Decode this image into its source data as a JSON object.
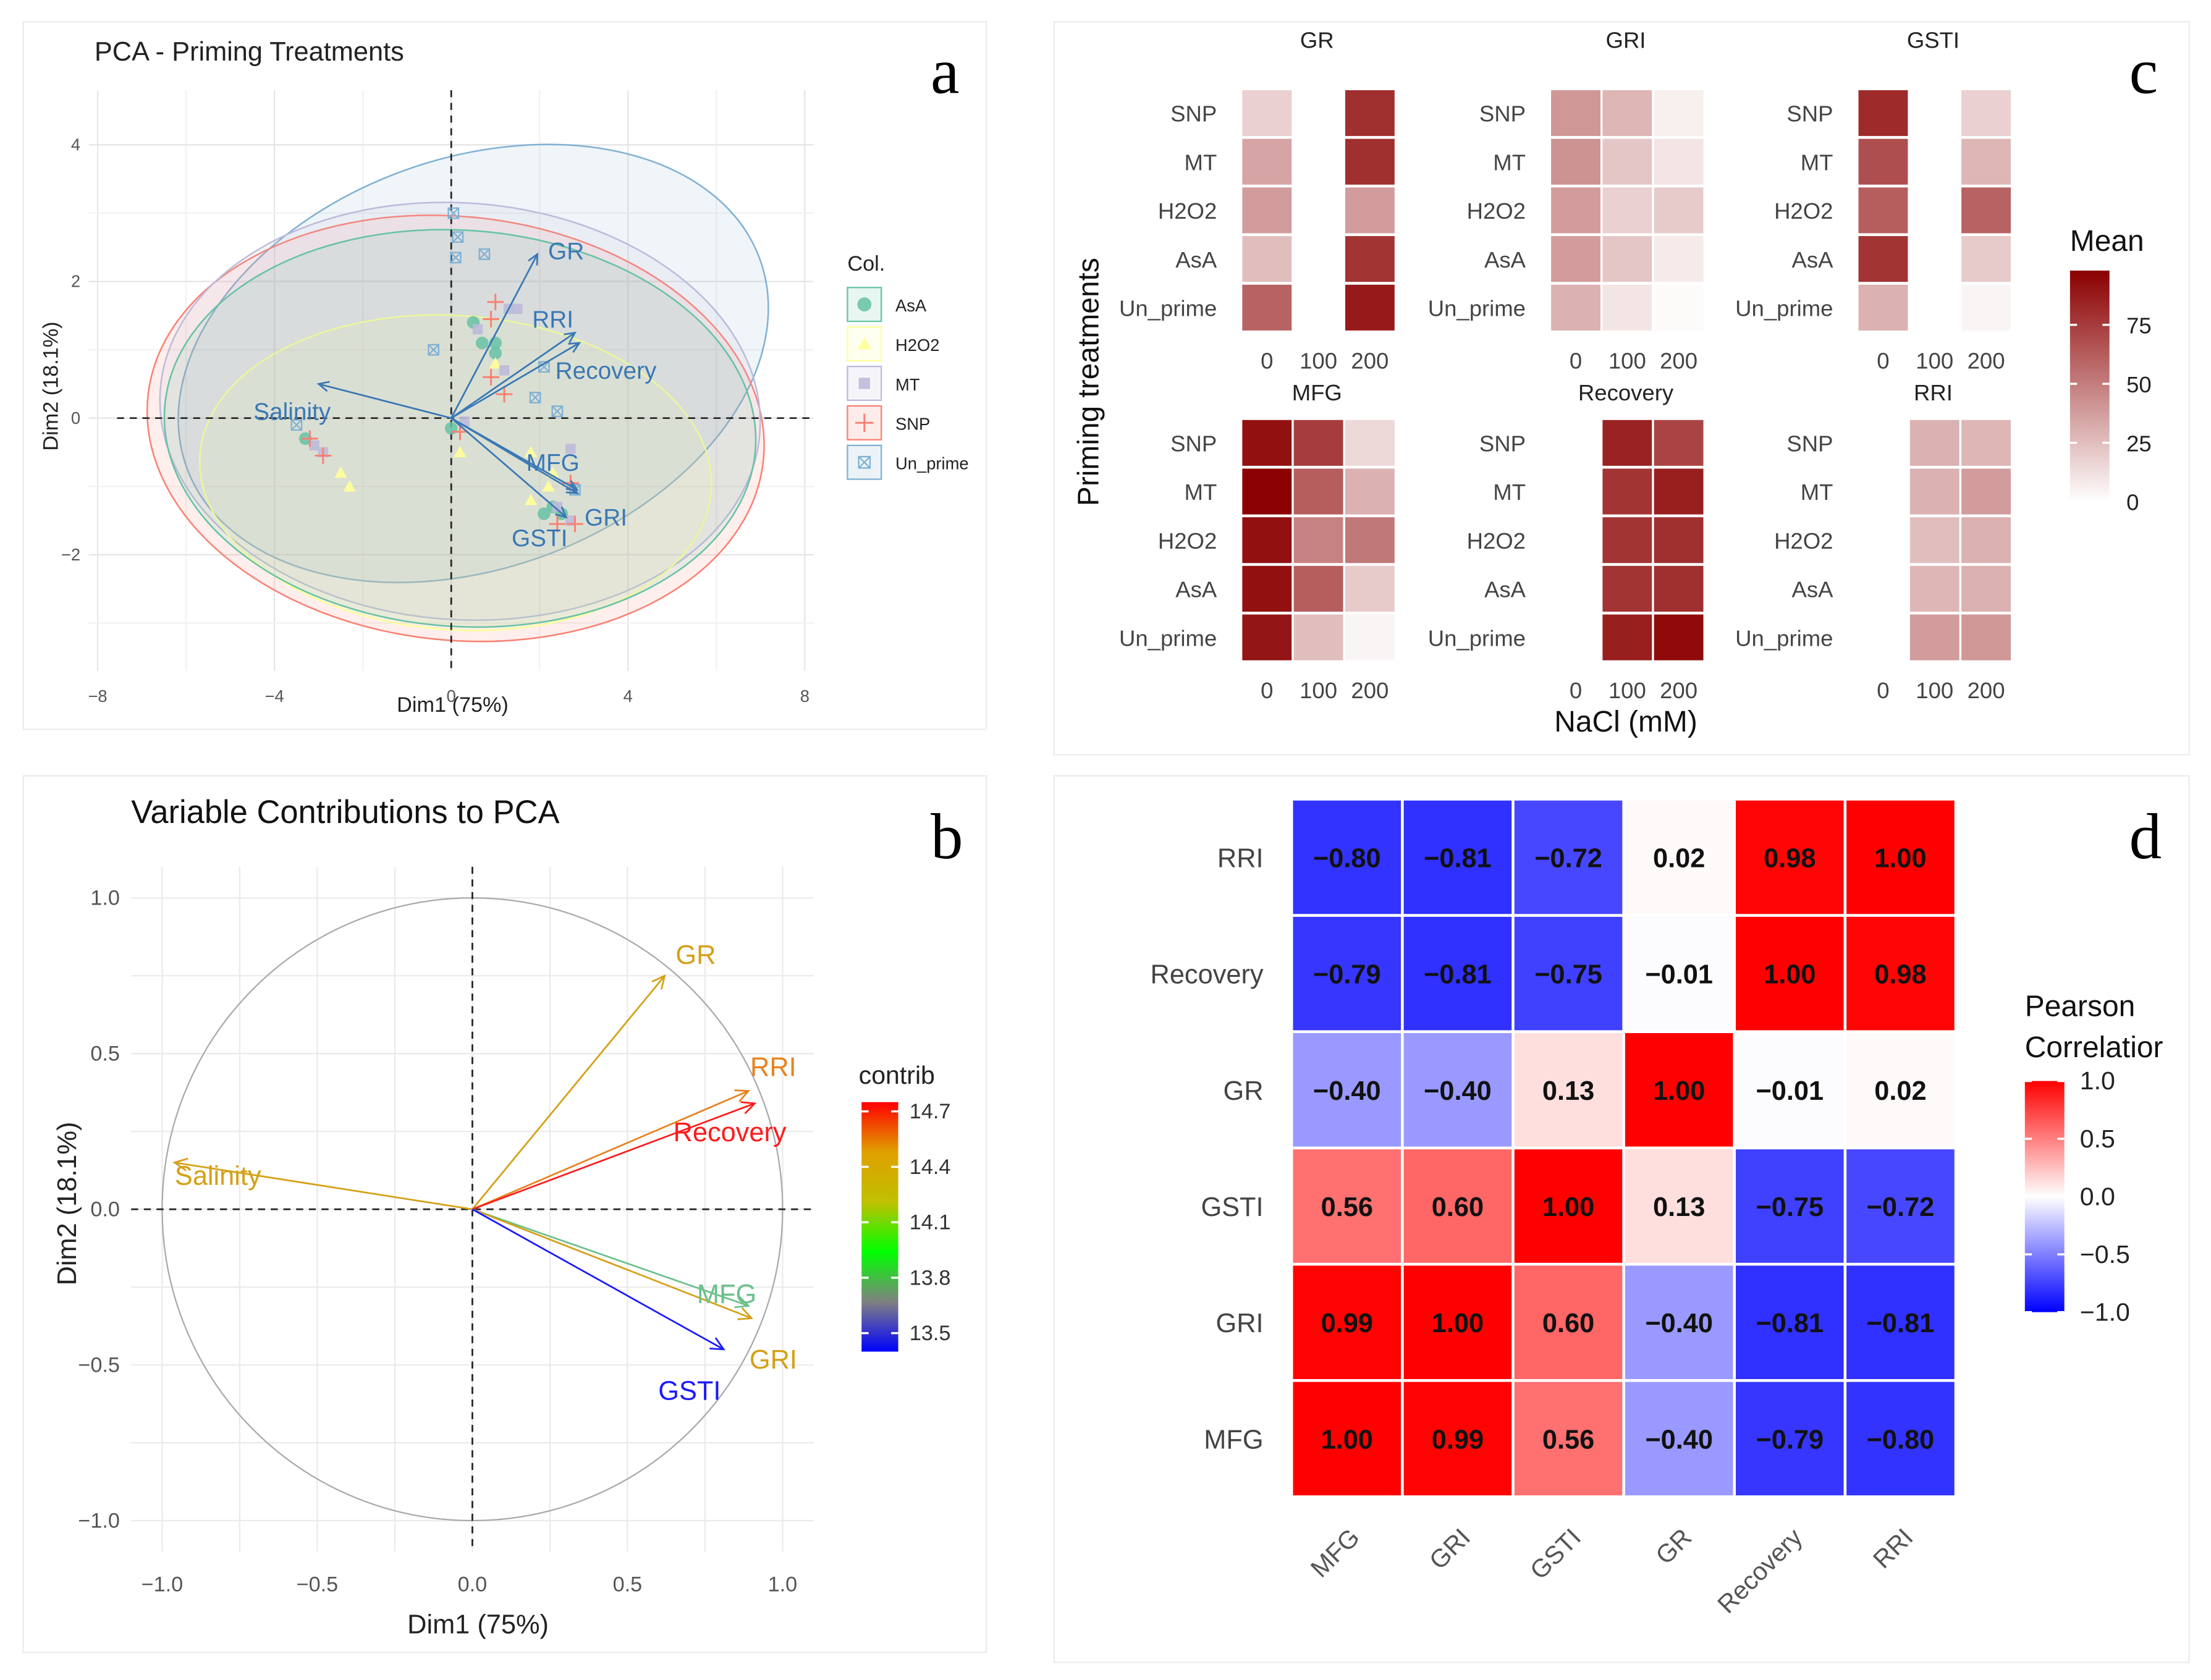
{
  "panels": {
    "a": {
      "letter": "a",
      "chart_data": {
        "type": "scatter",
        "title": "PCA - Priming Treatments",
        "xlabel": "Dim1 (75%)",
        "ylabel": "Dim2 (18.1%)",
        "xlim": [
          -8.2,
          8.2
        ],
        "ylim": [
          -3.7,
          4.8
        ],
        "xticks": [
          -8,
          -4,
          0,
          4,
          8
        ],
        "yticks": [
          -2,
          0,
          2,
          4
        ],
        "xtick_labels": [
          "−8",
          "−4",
          "0",
          "4",
          "8"
        ],
        "ytick_labels": [
          "−2",
          "0",
          "2",
          "4"
        ],
        "grid": true,
        "legend_title": "Col.",
        "legend_position": "right",
        "groups": [
          {
            "name": "AsA",
            "color": "#66c2a5",
            "marker": "circle",
            "points": [
              [
                0.5,
                1.4
              ],
              [
                0.7,
                1.1
              ],
              [
                1.0,
                1.1
              ],
              [
                1.0,
                0.95
              ],
              [
                2.1,
                -1.4
              ],
              [
                2.3,
                -1.3
              ],
              [
                2.5,
                -1.4
              ],
              [
                -3.3,
                -0.3
              ],
              [
                0,
                -0.15
              ]
            ],
            "mean": [
              0,
              -0.15
            ],
            "ellipse": {
              "cx": 0.2,
              "cy": -0.15,
              "rx": 6.7,
              "ry": 2.9,
              "angle": -4
            }
          },
          {
            "name": "H2O2",
            "color": "#ffff99",
            "marker": "triangle",
            "points": [
              [
                1.0,
                0.8
              ],
              [
                1.8,
                -0.5
              ],
              [
                2.2,
                -1.0
              ],
              [
                1.8,
                -1.2
              ],
              [
                2.3,
                -0.8
              ],
              [
                -2.5,
                -0.8
              ],
              [
                -2.3,
                -1.0
              ],
              [
                0.2,
                -0.5
              ]
            ],
            "mean": [
              0.2,
              -0.55
            ],
            "ellipse": {
              "cx": 0.1,
              "cy": -0.8,
              "rx": 5.8,
              "ry": 2.3,
              "angle": -4
            }
          },
          {
            "name": "MT",
            "color": "#bebada",
            "marker": "square",
            "points": [
              [
                1.3,
                1.6
              ],
              [
                1.5,
                1.6
              ],
              [
                0.6,
                1.3
              ],
              [
                1.2,
                0.7
              ],
              [
                2.7,
                -0.45
              ],
              [
                2.4,
                -1.3
              ],
              [
                2.7,
                -1.5
              ],
              [
                -3.1,
                -0.4
              ],
              [
                -2.9,
                -0.5
              ],
              [
                0.3,
                -0.05
              ]
            ],
            "mean": [
              0.3,
              -0.1
            ],
            "ellipse": {
              "cx": 0.2,
              "cy": 0.1,
              "rx": 6.8,
              "ry": 3.05,
              "angle": -4
            }
          },
          {
            "name": "SNP",
            "color": "#fb8072",
            "marker": "cross",
            "points": [
              [
                1.0,
                1.7
              ],
              [
                0.9,
                1.45
              ],
              [
                0.9,
                0.6
              ],
              [
                1.2,
                0.35
              ],
              [
                2.7,
                -0.95
              ],
              [
                2.4,
                -1.55
              ],
              [
                2.8,
                -1.55
              ],
              [
                -3.2,
                -0.3
              ],
              [
                -2.9,
                -0.55
              ],
              [
                0.2,
                -0.2
              ]
            ],
            "mean": [
              0.2,
              -0.2
            ],
            "ellipse": {
              "cx": 0.1,
              "cy": -0.15,
              "rx": 7.0,
              "ry": 3.1,
              "angle": -6
            }
          },
          {
            "name": "Un_prime",
            "color": "#80b1d3",
            "marker": "boxed-x",
            "points": [
              [
                0.05,
                3.0
              ],
              [
                0.15,
                2.65
              ],
              [
                0.1,
                2.35
              ],
              [
                0.75,
                2.4
              ],
              [
                -0.4,
                1.0
              ],
              [
                2.1,
                0.75
              ],
              [
                1.9,
                0.3
              ],
              [
                2.4,
                0.1
              ],
              [
                -3.5,
                -0.1
              ],
              [
                2.8,
                -1.05
              ]
            ],
            "mean": [
              -0.4,
              1.0
            ],
            "ellipse": {
              "cx": 0.5,
              "cy": 0.8,
              "rx": 6.9,
              "ry": 3.0,
              "angle": 20
            }
          }
        ],
        "variables": [
          {
            "name": "GR",
            "x": 1.95,
            "y": 2.4
          },
          {
            "name": "RRI",
            "x": 2.8,
            "y": 1.25
          },
          {
            "name": "Recovery",
            "x": 2.9,
            "y": 1.1
          },
          {
            "name": "Salinity",
            "x": -3.0,
            "y": 0.5
          },
          {
            "name": "MFG",
            "x": 2.85,
            "y": -1.05
          },
          {
            "name": "GRI",
            "x": 2.85,
            "y": -1.1
          },
          {
            "name": "GSTI",
            "x": 2.6,
            "y": -1.45
          }
        ],
        "arrow_color": "#3a78b5"
      }
    },
    "b": {
      "letter": "b",
      "chart_data": {
        "type": "line",
        "title": "Variable Contributions to PCA",
        "xlabel": "Dim1 (75%)",
        "ylabel": "Dim2 (18.1%)",
        "xlim": [
          -1.1,
          1.1
        ],
        "ylim": [
          -1.1,
          1.1
        ],
        "xticks": [
          -1.0,
          -0.5,
          0.0,
          0.5,
          1.0
        ],
        "yticks": [
          -1.0,
          -0.5,
          0.0,
          0.5,
          1.0
        ],
        "xtick_labels": [
          "−1.0",
          "−0.5",
          "0.0",
          "0.5",
          "1.0"
        ],
        "ytick_labels": [
          "−1.0",
          "−0.5",
          "0.0",
          "0.5",
          "1.0"
        ],
        "grid": true,
        "legend_title": "contrib",
        "legend_position": "right",
        "colorbar": {
          "min": 13.4,
          "max": 14.75,
          "ticks": [
            13.5,
            13.8,
            14.1,
            14.4,
            14.7
          ],
          "colors": [
            "#0000ff",
            "#808080",
            "#00ff00",
            "#c0c000",
            "#e0a000",
            "#ff0000"
          ]
        },
        "variables": [
          {
            "name": "GR",
            "x": 0.62,
            "y": 0.75,
            "contrib": 14.4,
            "color": "#d4a017"
          },
          {
            "name": "RRI",
            "x": 0.89,
            "y": 0.38,
            "contrib": 14.6,
            "color": "#e8821e"
          },
          {
            "name": "Recovery",
            "x": 0.91,
            "y": 0.34,
            "contrib": 14.75,
            "color": "#ff1a1a"
          },
          {
            "name": "Salinity",
            "x": -0.96,
            "y": 0.15,
            "contrib": 14.4,
            "color": "#d4a017"
          },
          {
            "name": "MFG",
            "x": 0.89,
            "y": -0.31,
            "contrib": 13.95,
            "color": "#6cc08b"
          },
          {
            "name": "GRI",
            "x": 0.9,
            "y": -0.35,
            "contrib": 14.4,
            "color": "#d4a017"
          },
          {
            "name": "GSTI",
            "x": 0.81,
            "y": -0.45,
            "contrib": 13.45,
            "color": "#1a1aff"
          }
        ]
      }
    },
    "c": {
      "letter": "c",
      "chart_data": {
        "type": "heatmap",
        "xlabel": "NaCl (mM)",
        "ylabel": "Priming treatments",
        "x": [
          "0",
          "100",
          "200"
        ],
        "y": [
          "SNP",
          "MT",
          "H2O2",
          "AsA",
          "Un_prime"
        ],
        "legend_title": "Mean",
        "legend_position": "right",
        "colorbar": {
          "min": 0,
          "max": 98,
          "ticks": [
            0,
            25,
            50,
            75
          ],
          "low": "#ffffff",
          "high": "#8b0000"
        },
        "facets": [
          {
            "name": "GR",
            "values": [
              [
                18,
                null,
                80
              ],
              [
                35,
                null,
                80
              ],
              [
                38,
                null,
                38
              ],
              [
                25,
                null,
                78
              ],
              [
                60,
                null,
                88
              ]
            ]
          },
          {
            "name": "GRI",
            "values": [
              [
                40,
                28,
                6
              ],
              [
                42,
                22,
                10
              ],
              [
                38,
                18,
                20
              ],
              [
                38,
                22,
                8
              ],
              [
                30,
                10,
                2
              ]
            ]
          },
          {
            "name": "GSTI",
            "values": [
              [
                82,
                null,
                18
              ],
              [
                68,
                null,
                28
              ],
              [
                62,
                null,
                60
              ],
              [
                78,
                null,
                20
              ],
              [
                30,
                null,
                4
              ]
            ]
          },
          {
            "name": "MFG",
            "values": [
              [
                92,
                75,
                15
              ],
              [
                98,
                62,
                30
              ],
              [
                92,
                48,
                52
              ],
              [
                92,
                62,
                20
              ],
              [
                90,
                25,
                4
              ]
            ]
          },
          {
            "name": "Recovery",
            "values": [
              [
                null,
                85,
                72
              ],
              [
                null,
                78,
                86
              ],
              [
                null,
                78,
                80
              ],
              [
                null,
                78,
                80
              ],
              [
                null,
                86,
                94
              ]
            ]
          },
          {
            "name": "RRI",
            "values": [
              [
                null,
                30,
                28
              ],
              [
                null,
                30,
                38
              ],
              [
                null,
                25,
                30
              ],
              [
                null,
                28,
                30
              ],
              [
                null,
                38,
                40
              ]
            ]
          }
        ]
      }
    },
    "d": {
      "letter": "d",
      "chart_data": {
        "type": "heatmap",
        "title": "",
        "x": [
          "MFG",
          "GRI",
          "GSTI",
          "GR",
          "Recovery",
          "RRI"
        ],
        "y_top_to_bottom": [
          "RRI",
          "Recovery",
          "GR",
          "GSTI",
          "GRI",
          "MFG"
        ],
        "legend_title": "Pearson Correlation",
        "legend_title_lines": [
          "Pearson",
          "Correlatior"
        ],
        "legend_position": "right",
        "colorbar": {
          "min": -1.0,
          "max": 1.0,
          "ticks": [
            1.0,
            0.5,
            0.0,
            -0.5,
            -1.0
          ],
          "tick_labels": [
            "1.0",
            "0.5",
            "0.0",
            "−0.5",
            "−1.0"
          ],
          "low": "#0000ff",
          "mid": "#ffffff",
          "high": "#ff0000"
        },
        "values": [
          [
            -0.8,
            -0.81,
            -0.72,
            0.02,
            0.98,
            1.0
          ],
          [
            -0.79,
            -0.81,
            -0.75,
            -0.01,
            1.0,
            0.98
          ],
          [
            -0.4,
            -0.4,
            0.13,
            1.0,
            -0.01,
            0.02
          ],
          [
            0.56,
            0.6,
            1.0,
            0.13,
            -0.75,
            -0.72
          ],
          [
            0.99,
            1.0,
            0.6,
            -0.4,
            -0.81,
            -0.81
          ],
          [
            1.0,
            0.99,
            0.56,
            -0.4,
            -0.79,
            -0.8
          ]
        ]
      }
    }
  }
}
